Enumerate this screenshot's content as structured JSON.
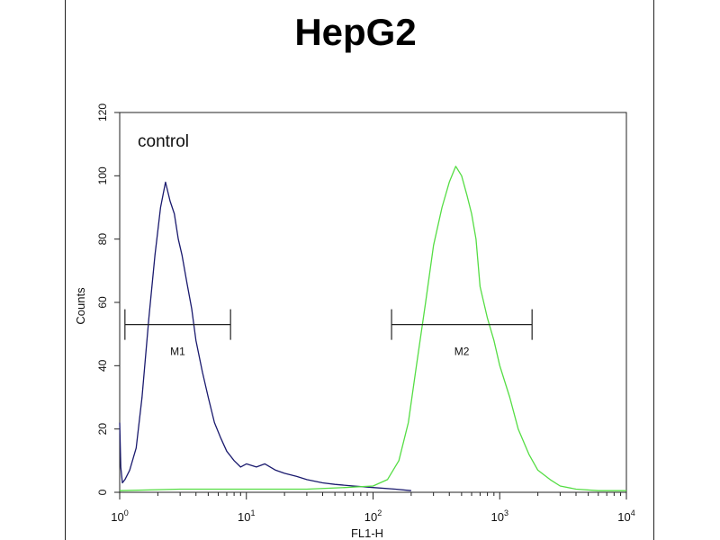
{
  "chart_data": {
    "type": "line",
    "title": "HepG2",
    "xlabel": "FL1-H",
    "ylabel": "Counts",
    "x_scale": "log",
    "xlim": [
      1,
      10000
    ],
    "ylim": [
      0,
      120
    ],
    "x_ticks": [
      {
        "base": "10",
        "exp": "0",
        "value": 1
      },
      {
        "base": "10",
        "exp": "1",
        "value": 10
      },
      {
        "base": "10",
        "exp": "2",
        "value": 100
      },
      {
        "base": "10",
        "exp": "3",
        "value": 1000
      },
      {
        "base": "10",
        "exp": "4",
        "value": 10000
      }
    ],
    "y_ticks": [
      "0",
      "20",
      "40",
      "60",
      "80",
      "100",
      "120"
    ],
    "annotation": "control",
    "markers": [
      {
        "label": "M1",
        "x_start": 1.1,
        "x_end": 7.5,
        "y": 53
      },
      {
        "label": "M2",
        "x_start": 140,
        "x_end": 1800,
        "y": 53
      }
    ],
    "series": [
      {
        "color": "#1a1a6e",
        "x": [
          1,
          1.02,
          1.05,
          1.1,
          1.2,
          1.35,
          1.5,
          1.7,
          1.9,
          2.1,
          2.3,
          2.5,
          2.7,
          2.9,
          3.1,
          3.4,
          3.7,
          4.0,
          4.5,
          5.0,
          5.6,
          6.3,
          7.0,
          8,
          9,
          10,
          12,
          14,
          17,
          20,
          25,
          30,
          40,
          50,
          70,
          100,
          150,
          200
        ],
        "y": [
          22,
          8,
          3,
          4,
          7,
          14,
          30,
          55,
          75,
          90,
          98,
          92,
          88,
          80,
          75,
          66,
          58,
          48,
          38,
          30,
          22,
          17,
          13,
          10,
          8,
          9,
          8,
          9,
          7,
          6,
          5,
          4,
          3,
          2.5,
          2,
          1.5,
          1,
          0.5
        ]
      },
      {
        "color": "#55dd44",
        "x": [
          1,
          3,
          10,
          30,
          60,
          100,
          130,
          160,
          190,
          220,
          260,
          300,
          350,
          400,
          450,
          500,
          550,
          600,
          650,
          700,
          800,
          900,
          1000,
          1200,
          1400,
          1700,
          2000,
          2500,
          3000,
          4000,
          6000,
          10000
        ],
        "y": [
          0.5,
          1,
          1,
          1,
          1.5,
          2,
          4,
          10,
          22,
          40,
          60,
          78,
          90,
          98,
          103,
          100,
          94,
          88,
          80,
          65,
          55,
          48,
          40,
          30,
          20,
          12,
          7,
          4,
          2,
          1,
          0.5,
          0.5
        ]
      }
    ]
  }
}
